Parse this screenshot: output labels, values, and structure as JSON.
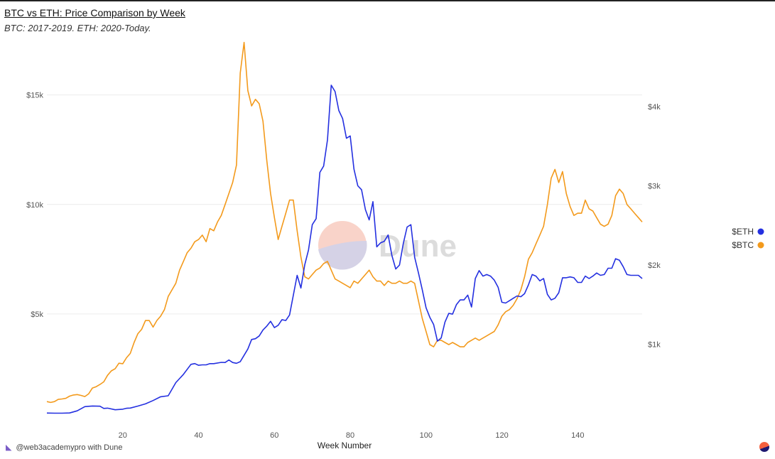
{
  "header": {
    "title": "BTC vs ETH: Price Comparison by Week",
    "subtitle": "BTC: 2017-2019. ETH: 2020-Today."
  },
  "footer": {
    "credit": "@web3academypro with Dune",
    "icon": "fox-icon"
  },
  "watermark": {
    "text": "Dune"
  },
  "chart_data": {
    "type": "line",
    "xlabel": "Week Number",
    "x_ticks": [
      20,
      40,
      60,
      80,
      100,
      120,
      140
    ],
    "xlim": [
      0,
      157
    ],
    "y_left": {
      "ticks": [
        5000,
        10000,
        15000
      ],
      "tick_labels": [
        "$5k",
        "$10k",
        "$15k"
      ],
      "range": [
        0,
        17000
      ],
      "series": "$BTC"
    },
    "y_right": {
      "ticks": [
        1000,
        2000,
        3000,
        4000
      ],
      "tick_labels": [
        "$1k",
        "$2k",
        "$3k",
        "$4k"
      ],
      "range": [
        0,
        4700
      ],
      "series": "$ETH"
    },
    "grid": true,
    "legend_position": "right",
    "series": [
      {
        "name": "$ETH",
        "axis": "right",
        "color": "#2430e0",
        "points": [
          [
            0,
            132
          ],
          [
            2,
            130
          ],
          [
            4,
            130
          ],
          [
            6,
            133
          ],
          [
            8,
            160
          ],
          [
            10,
            213
          ],
          [
            12,
            221
          ],
          [
            14,
            218
          ],
          [
            15,
            190
          ],
          [
            16,
            194
          ],
          [
            18,
            173
          ],
          [
            20,
            180
          ],
          [
            21,
            192
          ],
          [
            22,
            195
          ],
          [
            24,
            220
          ],
          [
            26,
            248
          ],
          [
            28,
            290
          ],
          [
            30,
            337
          ],
          [
            32,
            350
          ],
          [
            34,
            516
          ],
          [
            36,
            620
          ],
          [
            38,
            746
          ],
          [
            39,
            756
          ],
          [
            40,
            735
          ],
          [
            41,
            740
          ],
          [
            42,
            740
          ],
          [
            43,
            755
          ],
          [
            44,
            755
          ],
          [
            46,
            771
          ],
          [
            47,
            770
          ],
          [
            48,
            802
          ],
          [
            49,
            770
          ],
          [
            50,
            760
          ],
          [
            51,
            780
          ],
          [
            52,
            860
          ],
          [
            53,
            940
          ],
          [
            54,
            1060
          ],
          [
            55,
            1070
          ],
          [
            56,
            1105
          ],
          [
            57,
            1180
          ],
          [
            58,
            1230
          ],
          [
            59,
            1290
          ],
          [
            60,
            1210
          ],
          [
            61,
            1240
          ],
          [
            62,
            1310
          ],
          [
            63,
            1300
          ],
          [
            64,
            1370
          ],
          [
            66,
            1870
          ],
          [
            67,
            1710
          ],
          [
            68,
            2003
          ],
          [
            69,
            2190
          ],
          [
            70,
            2510
          ],
          [
            71,
            2585
          ],
          [
            72,
            3170
          ],
          [
            73,
            3250
          ],
          [
            74,
            3580
          ],
          [
            75,
            4270
          ],
          [
            76,
            4190
          ],
          [
            77,
            3950
          ],
          [
            78,
            3850
          ],
          [
            79,
            3600
          ],
          [
            80,
            3630
          ],
          [
            81,
            3210
          ],
          [
            82,
            3000
          ],
          [
            83,
            2950
          ],
          [
            84,
            2700
          ],
          [
            85,
            2570
          ],
          [
            86,
            2800
          ],
          [
            87,
            2230
          ],
          [
            88,
            2280
          ],
          [
            89,
            2300
          ],
          [
            90,
            2380
          ],
          [
            91,
            2120
          ],
          [
            92,
            1950
          ],
          [
            93,
            2000
          ],
          [
            94,
            2270
          ],
          [
            95,
            2480
          ],
          [
            96,
            2510
          ],
          [
            97,
            2100
          ],
          [
            98,
            1900
          ],
          [
            99,
            1690
          ],
          [
            100,
            1460
          ],
          [
            101,
            1340
          ],
          [
            102,
            1250
          ],
          [
            103,
            1040
          ],
          [
            104,
            1080
          ],
          [
            105,
            1280
          ],
          [
            106,
            1390
          ],
          [
            107,
            1380
          ],
          [
            108,
            1500
          ],
          [
            109,
            1560
          ],
          [
            110,
            1560
          ],
          [
            111,
            1620
          ],
          [
            112,
            1470
          ],
          [
            113,
            1830
          ],
          [
            114,
            1930
          ],
          [
            115,
            1860
          ],
          [
            116,
            1880
          ],
          [
            117,
            1860
          ],
          [
            118,
            1810
          ],
          [
            119,
            1720
          ],
          [
            120,
            1530
          ],
          [
            121,
            1520
          ],
          [
            122,
            1550
          ],
          [
            123,
            1580
          ],
          [
            124,
            1610
          ],
          [
            125,
            1600
          ],
          [
            126,
            1640
          ],
          [
            127,
            1750
          ],
          [
            128,
            1880
          ],
          [
            129,
            1860
          ],
          [
            130,
            1800
          ],
          [
            131,
            1830
          ],
          [
            132,
            1630
          ],
          [
            133,
            1560
          ],
          [
            134,
            1580
          ],
          [
            135,
            1650
          ],
          [
            136,
            1840
          ],
          [
            137,
            1840
          ],
          [
            138,
            1850
          ],
          [
            139,
            1840
          ],
          [
            140,
            1780
          ],
          [
            141,
            1780
          ],
          [
            142,
            1860
          ],
          [
            143,
            1830
          ],
          [
            144,
            1860
          ],
          [
            145,
            1900
          ],
          [
            146,
            1870
          ],
          [
            147,
            1880
          ],
          [
            148,
            1960
          ],
          [
            149,
            1960
          ],
          [
            150,
            2080
          ],
          [
            151,
            2060
          ],
          [
            152,
            1980
          ],
          [
            153,
            1880
          ],
          [
            154,
            1870
          ],
          [
            155,
            1870
          ],
          [
            156,
            1870
          ],
          [
            157,
            1830
          ]
        ]
      },
      {
        "name": "$BTC",
        "axis": "left",
        "color": "#f39a1c",
        "points": [
          [
            0,
            1000
          ],
          [
            1,
            960
          ],
          [
            2,
            1000
          ],
          [
            3,
            1100
          ],
          [
            4,
            1120
          ],
          [
            5,
            1150
          ],
          [
            6,
            1250
          ],
          [
            7,
            1300
          ],
          [
            8,
            1320
          ],
          [
            9,
            1280
          ],
          [
            10,
            1230
          ],
          [
            11,
            1350
          ],
          [
            12,
            1620
          ],
          [
            13,
            1680
          ],
          [
            14,
            1780
          ],
          [
            15,
            1900
          ],
          [
            16,
            2200
          ],
          [
            17,
            2400
          ],
          [
            18,
            2500
          ],
          [
            19,
            2750
          ],
          [
            20,
            2730
          ],
          [
            21,
            3000
          ],
          [
            22,
            3200
          ],
          [
            23,
            3700
          ],
          [
            24,
            4100
          ],
          [
            25,
            4300
          ],
          [
            26,
            4700
          ],
          [
            27,
            4700
          ],
          [
            28,
            4400
          ],
          [
            29,
            4700
          ],
          [
            30,
            4900
          ],
          [
            31,
            5200
          ],
          [
            32,
            5800
          ],
          [
            33,
            6100
          ],
          [
            34,
            6400
          ],
          [
            35,
            7000
          ],
          [
            36,
            7400
          ],
          [
            37,
            7800
          ],
          [
            38,
            8000
          ],
          [
            39,
            8300
          ],
          [
            40,
            8400
          ],
          [
            41,
            8600
          ],
          [
            42,
            8300
          ],
          [
            43,
            8900
          ],
          [
            44,
            8800
          ],
          [
            45,
            9200
          ],
          [
            46,
            9500
          ],
          [
            47,
            10000
          ],
          [
            48,
            10500
          ],
          [
            49,
            11000
          ],
          [
            50,
            11800
          ],
          [
            51,
            16000
          ],
          [
            52,
            17400
          ],
          [
            53,
            15200
          ],
          [
            54,
            14500
          ],
          [
            55,
            14800
          ],
          [
            56,
            14600
          ],
          [
            57,
            13800
          ],
          [
            58,
            12000
          ],
          [
            59,
            10500
          ],
          [
            60,
            9400
          ],
          [
            61,
            8400
          ],
          [
            62,
            9000
          ],
          [
            63,
            9600
          ],
          [
            64,
            10200
          ],
          [
            65,
            10200
          ],
          [
            66,
            8800
          ],
          [
            67,
            7600
          ],
          [
            68,
            6700
          ],
          [
            69,
            6600
          ],
          [
            70,
            6800
          ],
          [
            71,
            7000
          ],
          [
            72,
            7100
          ],
          [
            73,
            7300
          ],
          [
            74,
            7400
          ],
          [
            75,
            7000
          ],
          [
            76,
            6600
          ],
          [
            77,
            6500
          ],
          [
            78,
            6400
          ],
          [
            79,
            6300
          ],
          [
            80,
            6200
          ],
          [
            81,
            6500
          ],
          [
            82,
            6400
          ],
          [
            83,
            6600
          ],
          [
            84,
            6800
          ],
          [
            85,
            7000
          ],
          [
            86,
            6700
          ],
          [
            87,
            6500
          ],
          [
            88,
            6500
          ],
          [
            89,
            6300
          ],
          [
            90,
            6500
          ],
          [
            91,
            6400
          ],
          [
            92,
            6400
          ],
          [
            93,
            6500
          ],
          [
            94,
            6400
          ],
          [
            95,
            6400
          ],
          [
            96,
            6500
          ],
          [
            97,
            6400
          ],
          [
            98,
            5600
          ],
          [
            99,
            4800
          ],
          [
            100,
            4200
          ],
          [
            101,
            3600
          ],
          [
            102,
            3500
          ],
          [
            103,
            3800
          ],
          [
            104,
            3800
          ],
          [
            105,
            3700
          ],
          [
            106,
            3600
          ],
          [
            107,
            3700
          ],
          [
            108,
            3600
          ],
          [
            109,
            3500
          ],
          [
            110,
            3500
          ],
          [
            111,
            3700
          ],
          [
            112,
            3800
          ],
          [
            113,
            3900
          ],
          [
            114,
            3800
          ],
          [
            115,
            3900
          ],
          [
            116,
            4000
          ],
          [
            117,
            4100
          ],
          [
            118,
            4200
          ],
          [
            119,
            4500
          ],
          [
            120,
            4900
          ],
          [
            121,
            5100
          ],
          [
            122,
            5200
          ],
          [
            123,
            5400
          ],
          [
            124,
            5700
          ],
          [
            125,
            6100
          ],
          [
            126,
            6700
          ],
          [
            127,
            7500
          ],
          [
            128,
            7800
          ],
          [
            129,
            8200
          ],
          [
            130,
            8600
          ],
          [
            131,
            9000
          ],
          [
            132,
            10000
          ],
          [
            133,
            11200
          ],
          [
            134,
            11600
          ],
          [
            135,
            11000
          ],
          [
            136,
            11500
          ],
          [
            137,
            10500
          ],
          [
            138,
            9900
          ],
          [
            139,
            9500
          ],
          [
            140,
            9600
          ],
          [
            141,
            9600
          ],
          [
            142,
            10200
          ],
          [
            143,
            9800
          ],
          [
            144,
            9700
          ],
          [
            145,
            9400
          ],
          [
            146,
            9100
          ],
          [
            147,
            9000
          ],
          [
            148,
            9100
          ],
          [
            149,
            9500
          ],
          [
            150,
            10400
          ],
          [
            151,
            10700
          ],
          [
            152,
            10500
          ],
          [
            153,
            10000
          ],
          [
            154,
            9800
          ],
          [
            155,
            9600
          ],
          [
            156,
            9400
          ],
          [
            157,
            9200
          ]
        ]
      }
    ]
  }
}
